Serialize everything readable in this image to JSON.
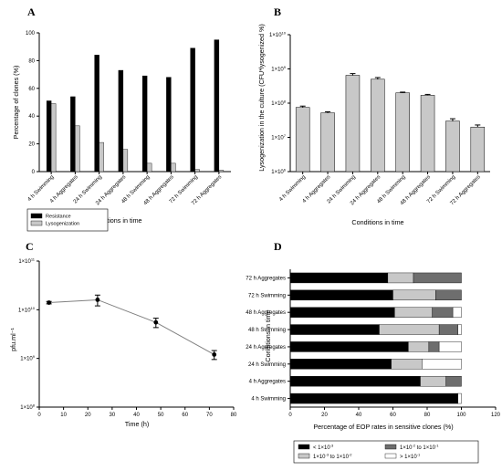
{
  "panels": {
    "A": {
      "letter": "A"
    },
    "B": {
      "letter": "B"
    },
    "C": {
      "letter": "C"
    },
    "D": {
      "letter": "D"
    }
  },
  "colors": {
    "black": "#000000",
    "light_gray": "#c8c8c8",
    "mid_gray": "#6e6e6e",
    "line": "#808080"
  },
  "chart_data": [
    {
      "panel": "A",
      "type": "bar",
      "xlabel": "Conditions in time",
      "ylabel": "Percentage of clones (%)",
      "ylim": [
        0,
        100
      ],
      "yticks": [
        0,
        20,
        40,
        60,
        80,
        100
      ],
      "categories": [
        "4 h Swimming",
        "4 h Aggregates",
        "24 h Swimming",
        "24 h Aggregates",
        "48 h Swimming",
        "48 h Aggregates",
        "72 h Swimming",
        "72 h Aggregates"
      ],
      "series": [
        {
          "name": "Resistance",
          "color": "#000000",
          "values": [
            51,
            54,
            84,
            73,
            69,
            68,
            89,
            95
          ]
        },
        {
          "name": "Lysogenization",
          "color": "#c8c8c8",
          "values": [
            49,
            33,
            21,
            16,
            6,
            6,
            1.5,
            1
          ]
        }
      ],
      "legend": "bottom-left"
    },
    {
      "panel": "B",
      "type": "bar",
      "xlabel": "Conditions in time",
      "ylabel": "Lysogenization in the culture (CFU*lysogenized %)",
      "yscale": "log",
      "ylim": [
        1000000,
        10000000000
      ],
      "yticks": [
        {
          "base": "1×10",
          "exp": "6"
        },
        {
          "base": "1×10",
          "exp": "7"
        },
        {
          "base": "1×10",
          "exp": "8"
        },
        {
          "base": "1×10",
          "exp": "9"
        },
        {
          "base": "1×10",
          "exp": "10"
        }
      ],
      "categories": [
        "4 h Swimming",
        "4 h Aggregates",
        "24 h Swimming",
        "24 h Aggregates",
        "48 h Swimming",
        "48 h Aggregates",
        "72 h Swimming",
        "72 h Aggregates"
      ],
      "values": [
        75000000,
        52000000,
        650000000,
        500000000,
        200000000,
        170000000,
        30000000,
        20000000
      ],
      "errors": [
        7000000,
        4000000,
        80000000,
        60000000,
        10000000,
        10000000,
        5000000,
        3000000
      ],
      "bar_color": "#c8c8c8"
    },
    {
      "panel": "C",
      "type": "line",
      "xlabel": "Time (h)",
      "ylabel": "pfu.ml⁻¹",
      "xlim": [
        0,
        80
      ],
      "xticks": [
        0,
        10,
        20,
        30,
        40,
        50,
        60,
        70,
        80
      ],
      "yscale": "log",
      "ylim": [
        100000000,
        100000000000
      ],
      "yticks": [
        {
          "base": "1×10",
          "exp": "8"
        },
        {
          "base": "1×10",
          "exp": "9"
        },
        {
          "base": "1×10",
          "exp": "10"
        },
        {
          "base": "1×10",
          "exp": "11"
        }
      ],
      "x": [
        4,
        24,
        48,
        72
      ],
      "y": [
        14000000000,
        16000000000,
        5500000000,
        1200000000
      ],
      "errors": [
        800000000,
        4000000000,
        1200000000,
        250000000
      ]
    },
    {
      "panel": "D",
      "type": "bar",
      "orientation": "horizontal",
      "stacked": true,
      "xlabel": "Percentage of EOP rates in sensitive clones (%)",
      "ylabel": "Conditions in time",
      "xlim": [
        0,
        120
      ],
      "xticks": [
        0,
        20,
        40,
        60,
        80,
        100,
        120
      ],
      "categories": [
        "4 h Swimming",
        "4 h Aggregates",
        "24 h Swimming",
        "24 h Aggregates",
        "48 h Swimming",
        "48 h Aggregates",
        "72 h Swimming",
        "72 h Aggregates"
      ],
      "series": [
        {
          "name": "< 1×10⁻³",
          "color": "#000000",
          "values": [
            98,
            76,
            59,
            69,
            52,
            61,
            60,
            57
          ]
        },
        {
          "name": "1×10⁻³ to 1×10⁻²",
          "color": "#c8c8c8",
          "values": [
            0,
            15,
            18,
            12,
            35,
            22,
            25,
            15
          ]
        },
        {
          "name": "1×10⁻² to 1×10⁻¹",
          "color": "#6e6e6e",
          "values": [
            0,
            9,
            0,
            6,
            11,
            12,
            15,
            28
          ]
        },
        {
          "name": "> 1×10⁻¹",
          "color": "#ffffff",
          "values": [
            2,
            0,
            23,
            13,
            2,
            5,
            0,
            0
          ]
        }
      ],
      "legend_items": [
        {
          "base": "< 1×10",
          "exp": "-3",
          "color": "#000000"
        },
        {
          "base": "1×10",
          "exp": "-3",
          "mid": " to 1×10",
          "exp2": "-2",
          "color": "#c8c8c8"
        },
        {
          "base": "1×10",
          "exp": "-2",
          "mid": " to 1×10",
          "exp2": "-1",
          "color": "#6e6e6e"
        },
        {
          "base": "> 1×10",
          "exp": "-1",
          "color": "#ffffff"
        }
      ]
    }
  ]
}
